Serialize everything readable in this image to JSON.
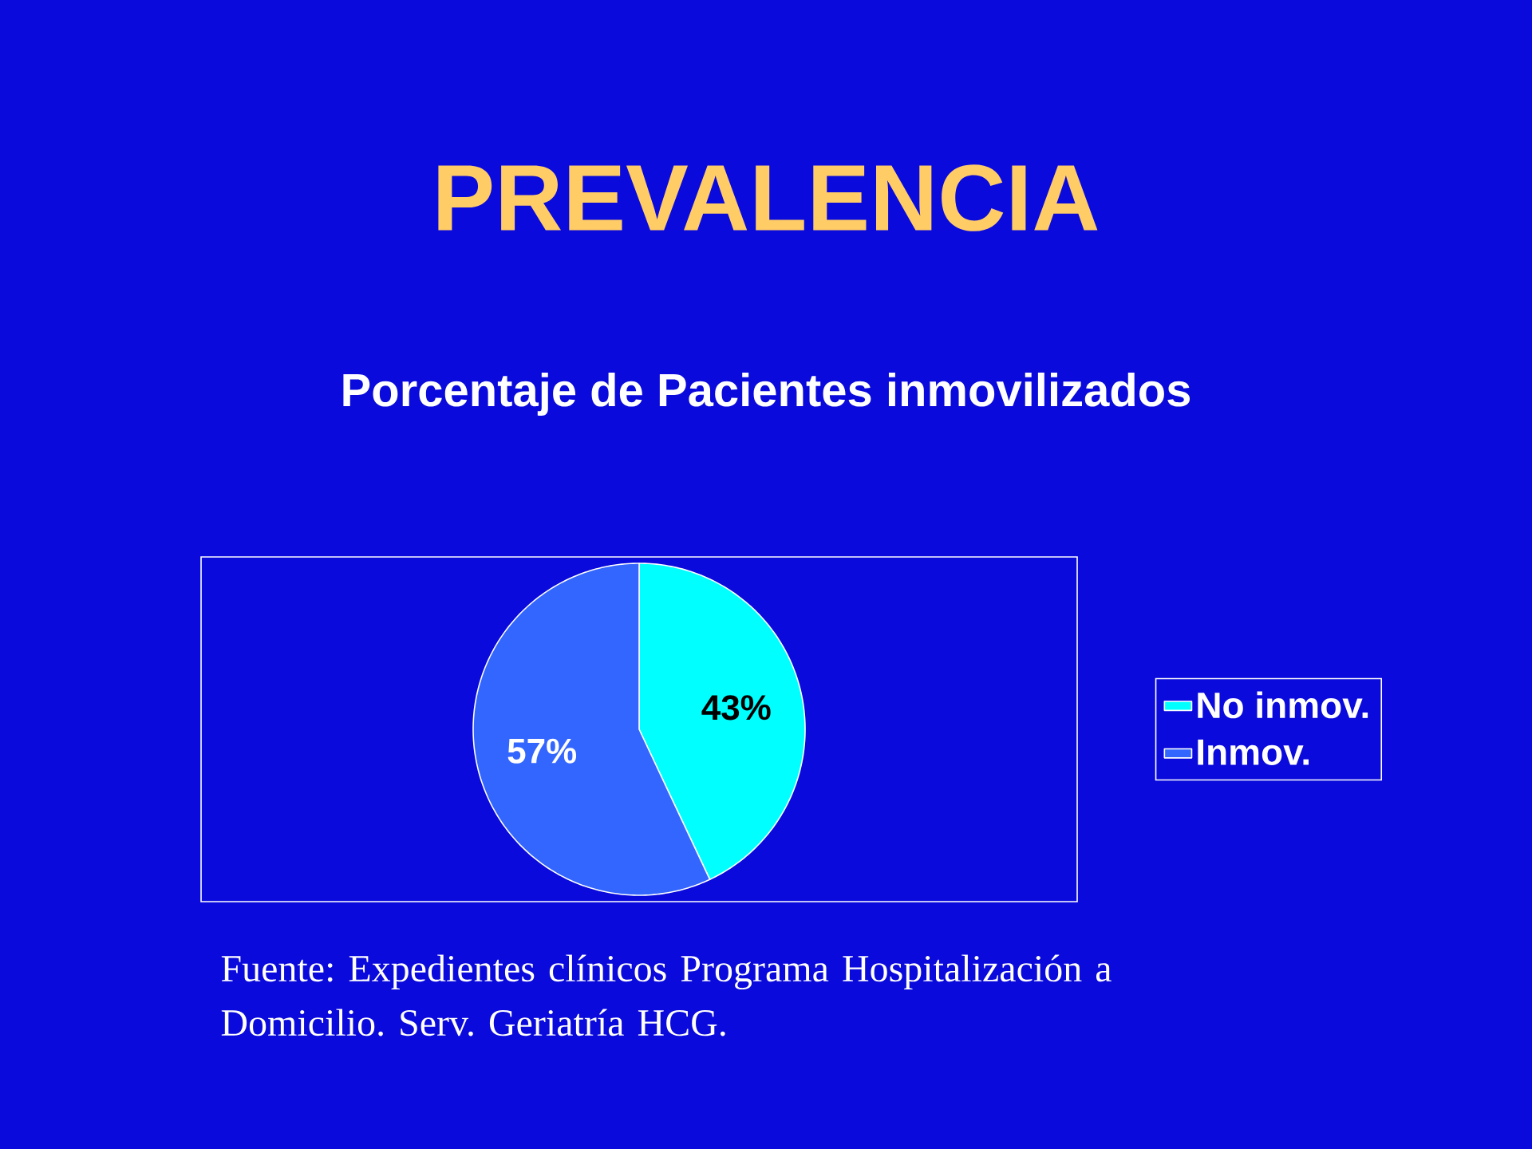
{
  "chart_data": {
    "type": "pie",
    "title": "PREVALENCIA",
    "subtitle": "Porcentaje de Pacientes inmovilizados",
    "categories": [
      "No inmov.",
      "Inmov."
    ],
    "values": [
      43,
      57
    ],
    "colors": [
      "#00ffff",
      "#3366ff"
    ],
    "value_labels": [
      "43%",
      "57%"
    ],
    "legend": "right",
    "annotations": [
      "Fuente: Expedientes clínicos Programa Hospitalización a Domicilio. Serv. Geriatría HCG."
    ]
  }
}
